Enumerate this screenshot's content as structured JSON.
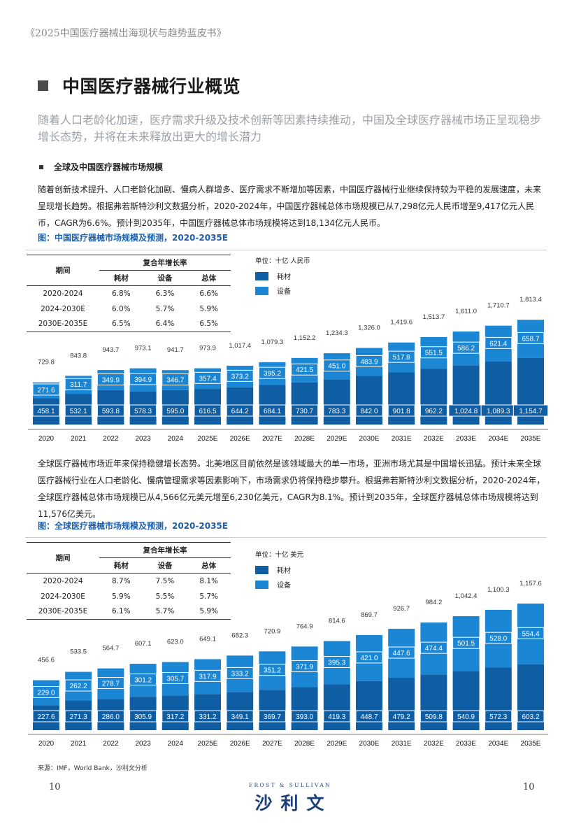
{
  "header": {
    "report_title": "《2025中国医疗器械出海现状与趋势蓝皮书》"
  },
  "section": {
    "title": "中国医疗器械行业概览"
  },
  "lead": "随着人口老龄化加速，医疗需求升级及技术创新等因素持续推动，中国及全球医疗器械市场正呈现稳步增长态势，并将在未来释放出更大的增长潜力",
  "subsection": {
    "title": "全球及中国医疗器械市场规模"
  },
  "para1": "随着创新技术提升、人口老龄化加剧、慢病人群增多、医疗需求不断增加等因素，中国医疗器械行业继续保持较为平稳的发展速度，未来呈现增长趋势。根据弗若斯特沙利文数据分析，2020-2024年，中国医疗器械总体市场规模已从7,298亿元人民币增至9,417亿元人民币，CAGR为6.6%。预计到2035年，中国医疗器械总体市场规模将达到18,134亿元人民币。",
  "para2": "全球医疗器械市场近年来保持稳健增长态势。北美地区目前依然是该领域最大的单一市场，亚洲市场尤其是中国增长迅猛。预计未来全球医疗器械行业在人口老龄化、慢病管理需求等因素影响下，市场需求仍将保持稳步攀升。根据弗若斯特沙利文数据分析，2020-2024年，全球医疗器械总体市场规模已从4,566亿元美元增至6,230亿美元，CAGR为8.1%。预计到2035年，全球医疗器械总体市场规模将达到11,576亿美元。",
  "figures": [
    {
      "title": "图：中国医疗器械市场规模及预测，2020-2035E",
      "cagr_table": {
        "period_header": "期间",
        "group_header": "复合年增长率",
        "columns": [
          "耗材",
          "设备",
          "总体"
        ],
        "rows": [
          {
            "period": "2020-2024",
            "values": [
              "6.8%",
              "6.3%",
              "6.6%"
            ]
          },
          {
            "period": "2024-2030E",
            "values": [
              "6.0%",
              "5.7%",
              "5.9%"
            ]
          },
          {
            "period": "2030E-2035E",
            "values": [
              "6.5%",
              "6.4%",
              "6.5%"
            ]
          }
        ]
      }
    },
    {
      "title": "图：全球医疗器械市场规模及预测，2020-2035E",
      "cagr_table": {
        "period_header": "期间",
        "group_header": "复合年增长率",
        "columns": [
          "耗材",
          "设备",
          "总体"
        ],
        "rows": [
          {
            "period": "2020-2024",
            "values": [
              "8.7%",
              "7.5%",
              "8.1%"
            ]
          },
          {
            "period": "2024-2030E",
            "values": [
              "5.9%",
              "5.5%",
              "5.7%"
            ]
          },
          {
            "period": "2030E-2035E",
            "values": [
              "6.1%",
              "5.7%",
              "5.9%"
            ]
          }
        ]
      }
    }
  ],
  "chart_data": [
    {
      "type": "bar",
      "stacked": true,
      "unit": "单位：十亿 人民币",
      "categories": [
        "2020",
        "2021",
        "2022",
        "2023",
        "2024",
        "2025E",
        "2026E",
        "2027E",
        "2028E",
        "2029E",
        "2030E",
        "2031E",
        "2032E",
        "2033E",
        "2034E",
        "2035E"
      ],
      "series": [
        {
          "name": "耗材",
          "color": "#0f5da3",
          "values": [
            458.1,
            532.1,
            593.8,
            578.3,
            595.0,
            616.5,
            644.2,
            684.1,
            730.7,
            783.3,
            842.0,
            901.8,
            962.2,
            1024.8,
            1089.3,
            1154.7
          ],
          "labels": [
            "458.1",
            "532.1",
            "593.8",
            "578.3",
            "595.0",
            "616.5",
            "644.2",
            "684.1",
            "730.7",
            "783.3",
            "842.0",
            "901.8",
            "962.2",
            "1,024.8",
            "1,089.3",
            "1,154.7"
          ]
        },
        {
          "name": "设备",
          "color": "#1b87d4",
          "values": [
            271.6,
            311.7,
            349.9,
            394.9,
            346.7,
            357.4,
            373.2,
            395.2,
            421.5,
            451.0,
            483.9,
            517.8,
            551.5,
            586.2,
            621.4,
            658.7
          ],
          "labels": [
            "271.6",
            "311.7",
            "349.9",
            "394.9",
            "346.7",
            "357.4",
            "373.2",
            "395.2",
            "421.5",
            "451.0",
            "483.9",
            "517.8",
            "551.5",
            "586.2",
            "621.4",
            "658.7"
          ]
        }
      ],
      "totals": [
        729.8,
        843.8,
        943.7,
        973.1,
        941.7,
        973.9,
        1017.4,
        1079.3,
        1152.2,
        1234.3,
        1326.0,
        1419.6,
        1513.7,
        1611.0,
        1710.7,
        1813.4
      ],
      "total_labels": [
        "729.8",
        "843.8",
        "943.7",
        "973.1",
        "941.7",
        "973.9",
        "1,017.4",
        "1,079.3",
        "1,152.2",
        "1,234.3",
        "1,326.0",
        "1,419.6",
        "1,513.7",
        "1,611.0",
        "1,710.7",
        "1,813.4"
      ],
      "legend": "top-left"
    },
    {
      "type": "bar",
      "stacked": true,
      "unit": "单位：十亿 美元",
      "categories": [
        "2020",
        "2021",
        "2022",
        "2023",
        "2024",
        "2025E",
        "2026E",
        "2027E",
        "2028E",
        "2029E",
        "2030E",
        "2031E",
        "2032E",
        "2033E",
        "2034E",
        "2035E"
      ],
      "series": [
        {
          "name": "耗材",
          "color": "#0f5da3",
          "values": [
            227.6,
            271.3,
            286.0,
            305.9,
            317.2,
            331.2,
            349.1,
            369.7,
            393.0,
            419.3,
            448.7,
            479.2,
            509.8,
            540.9,
            572.3,
            603.2
          ],
          "labels": [
            "227.6",
            "271.3",
            "286.0",
            "305.9",
            "317.2",
            "331.2",
            "349.1",
            "369.7",
            "393.0",
            "419.3",
            "448.7",
            "479.2",
            "509.8",
            "540.9",
            "572.3",
            "603.2"
          ]
        },
        {
          "name": "设备",
          "color": "#1b87d4",
          "values": [
            229.0,
            262.2,
            278.7,
            301.2,
            305.7,
            317.9,
            333.2,
            351.2,
            371.9,
            395.3,
            421.0,
            447.6,
            474.4,
            501.5,
            528.0,
            554.4
          ],
          "labels": [
            "229.0",
            "262.2",
            "278.7",
            "301.2",
            "305.7",
            "317.9",
            "333.2",
            "351.2",
            "371.9",
            "395.3",
            "421.0",
            "447.6",
            "474.4",
            "501.5",
            "528.0",
            "554.4"
          ]
        }
      ],
      "totals": [
        456.6,
        533.5,
        564.7,
        607.1,
        623.0,
        649.1,
        682.3,
        720.9,
        764.9,
        814.6,
        869.7,
        926.7,
        984.2,
        1042.4,
        1100.3,
        1157.6
      ],
      "total_labels": [
        "456.6",
        "533.5",
        "564.7",
        "607.1",
        "623.0",
        "649.1",
        "682.3",
        "720.9",
        "764.9",
        "814.6",
        "869.7",
        "926.7",
        "984.2",
        "1,042.4",
        "1,100.3",
        "1,157.6"
      ],
      "legend": "top-left"
    }
  ],
  "footer": {
    "source": "来源：IMF，World Bank，沙利文分析",
    "page_left": "10",
    "page_right": "10",
    "logo_en": "FROST & SULLIVAN",
    "logo_cn": "沙利文"
  }
}
